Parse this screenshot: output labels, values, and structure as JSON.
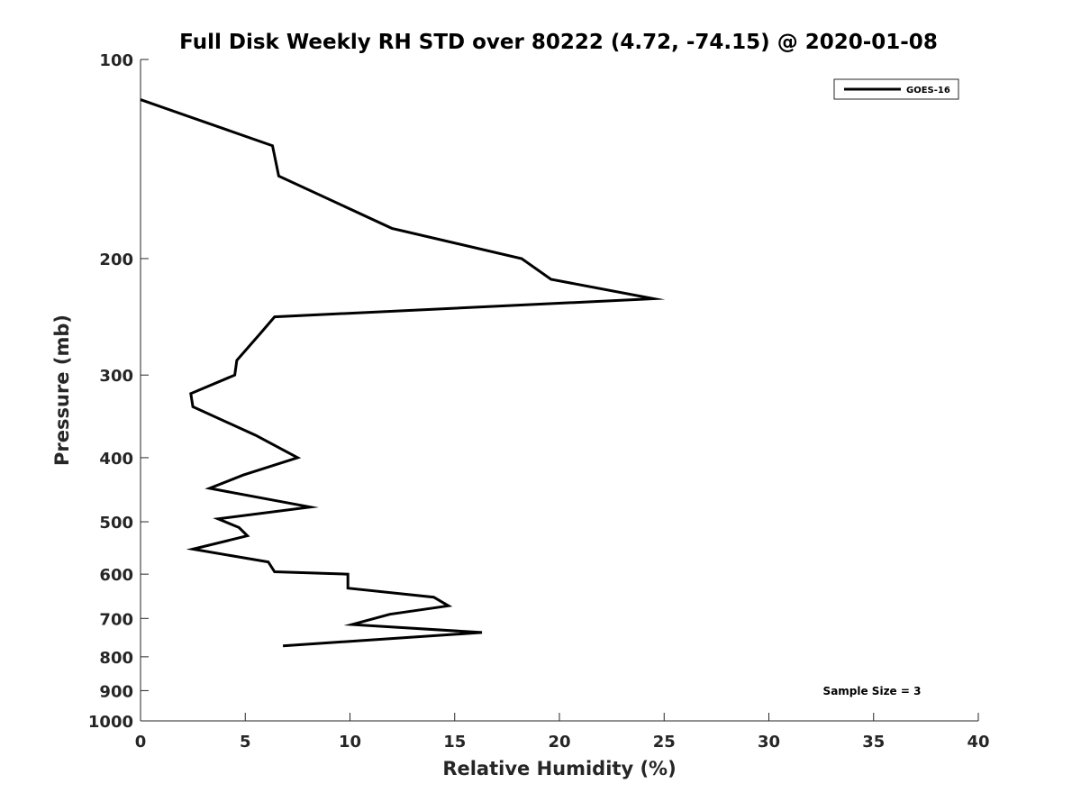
{
  "chart_data": {
    "type": "line",
    "title": "Full Disk Weekly RH STD over 80222 (4.72, -74.15) @ 2020-01-08",
    "xlabel": "Relative Humidity (%)",
    "ylabel": "Pressure (mb)",
    "xlim": [
      0,
      40
    ],
    "ylim": [
      100,
      1000
    ],
    "yscale": "log",
    "yreversed": true,
    "xticks": [
      0,
      5,
      10,
      15,
      20,
      25,
      30,
      35,
      40
    ],
    "xtick_labels": [
      "0",
      "5",
      "10",
      "15",
      "20",
      "25",
      "30",
      "35",
      "40"
    ],
    "yticks": [
      100,
      200,
      300,
      400,
      500,
      600,
      700,
      800,
      900,
      1000
    ],
    "ytick_labels": [
      "100",
      "200",
      "300",
      "400",
      "500",
      "600",
      "700",
      "800",
      "900",
      "1000"
    ],
    "grid": false,
    "legend": {
      "location": "top-right",
      "entries": [
        "GOES-16"
      ]
    },
    "annotation": "Sample Size = 3",
    "series": [
      {
        "name": "GOES-16",
        "color": "#000000",
        "x": [
          0.0,
          6.3,
          6.6,
          12.0,
          18.2,
          19.6,
          24.5,
          6.4,
          5.7,
          4.6,
          4.5,
          2.4,
          2.5,
          5.5,
          7.5,
          4.9,
          3.3,
          8.1,
          3.7,
          4.7,
          5.1,
          2.5,
          6.1,
          6.4,
          9.9,
          9.9,
          14.0,
          14.7,
          11.9,
          10.1,
          16.3,
          6.8
        ],
        "y": [
          115,
          135,
          150,
          180,
          200,
          215,
          230,
          245,
          260,
          285,
          300,
          320,
          335,
          370,
          400,
          425,
          445,
          475,
          495,
          510,
          525,
          550,
          575,
          595,
          600,
          630,
          650,
          670,
          690,
          715,
          735,
          770
        ]
      }
    ]
  }
}
